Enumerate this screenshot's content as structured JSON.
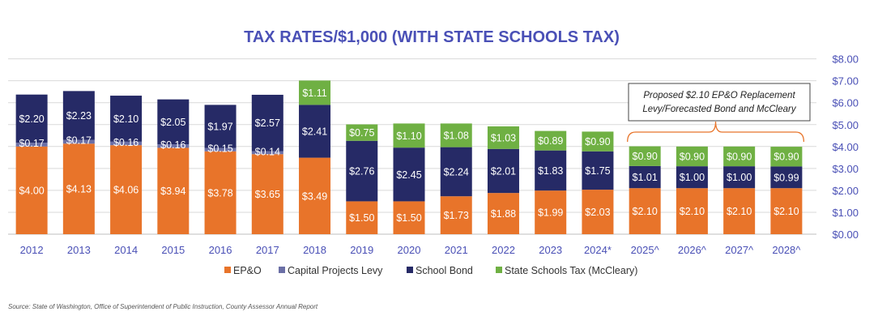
{
  "colors": {
    "ep_o": "#e8742a",
    "capital_projects": "#6b6fa6",
    "school_bond": "#262a66",
    "state_schools": "#6fb043",
    "title": "#4a50b6",
    "grid": "#d9d9d9"
  },
  "chart_data": {
    "type": "bar",
    "stacked": true,
    "title": "TAX RATES/$1,000 (WITH STATE SCHOOLS TAX)",
    "categories": [
      "2012",
      "2013",
      "2014",
      "2015",
      "2016",
      "2017",
      "2018",
      "2019",
      "2020",
      "2021",
      "2022",
      "2023",
      "2024*",
      "2025^",
      "2026^",
      "2027^",
      "2028^"
    ],
    "series": [
      {
        "name": "EP&O",
        "color_key": "ep_o",
        "values": [
          4.0,
          4.13,
          4.06,
          3.94,
          3.78,
          3.65,
          3.49,
          1.5,
          1.5,
          1.73,
          1.88,
          1.99,
          2.03,
          2.1,
          2.1,
          2.1,
          2.1
        ],
        "labels": [
          "$4.00",
          "$4.13",
          "$4.06",
          "$3.94",
          "$3.78",
          "$3.65",
          "$3.49",
          "$1.50",
          "$1.50",
          "$1.73",
          "$1.88",
          "$1.99",
          "$2.03",
          "$2.10",
          "$2.10",
          "$2.10",
          "$2.10"
        ]
      },
      {
        "name": "Capital Projects Levy",
        "color_key": "capital_projects",
        "values": [
          0.17,
          0.17,
          0.16,
          0.16,
          0.15,
          0.14,
          0,
          0,
          0,
          0,
          0,
          0,
          0,
          0,
          0,
          0,
          0
        ],
        "labels": [
          "$0.17",
          "$0.17",
          "$0.16",
          "$0.16",
          "$0.15",
          "$0.14",
          "",
          "",
          "",
          "",
          "",
          "",
          "",
          "",
          "",
          "",
          ""
        ]
      },
      {
        "name": "School Bond",
        "color_key": "school_bond",
        "values": [
          2.2,
          2.23,
          2.1,
          2.05,
          1.97,
          2.57,
          2.41,
          2.76,
          2.45,
          2.24,
          2.01,
          1.83,
          1.75,
          1.01,
          1.0,
          1.0,
          0.99
        ],
        "labels": [
          "$2.20",
          "$2.23",
          "$2.10",
          "$2.05",
          "$1.97",
          "$2.57",
          "$2.41",
          "$2.76",
          "$2.45",
          "$2.24",
          "$2.01",
          "$1.83",
          "$1.75",
          "$1.01",
          "$1.00",
          "$1.00",
          "$0.99"
        ]
      },
      {
        "name": "State Schools Tax (McCleary)",
        "color_key": "state_schools",
        "values": [
          0,
          0,
          0,
          0,
          0,
          0,
          1.11,
          0.75,
          1.1,
          1.08,
          1.03,
          0.89,
          0.9,
          0.9,
          0.9,
          0.9,
          0.9
        ],
        "labels": [
          "",
          "",
          "",
          "",
          "",
          "",
          "$1.11",
          "$0.75",
          "$1.10",
          "$1.08",
          "$1.03",
          "$0.89",
          "$0.90",
          "$0.90",
          "$0.90",
          "$0.90",
          "$0.90"
        ]
      }
    ],
    "ylim": [
      0,
      8
    ],
    "yticks": [
      0,
      1,
      2,
      3,
      4,
      5,
      6,
      7,
      8
    ],
    "ytick_labels": [
      "$0.00",
      "$1.00",
      "$2.00",
      "$3.00",
      "$4.00",
      "$5.00",
      "$6.00",
      "$7.00",
      "$8.00"
    ],
    "y_axis_side": "right",
    "grid": true,
    "legend_placement": "bottom",
    "annotation": {
      "lines": [
        "Proposed $2.10 EP&O Replacement",
        "Levy/Forecasted Bond and McCleary"
      ],
      "spans_categories": [
        "2025^",
        "2028^"
      ]
    }
  },
  "source_note": "Source: State of Washington, Office of Superintendent of Public Instruction, County Assessor Annual Report"
}
